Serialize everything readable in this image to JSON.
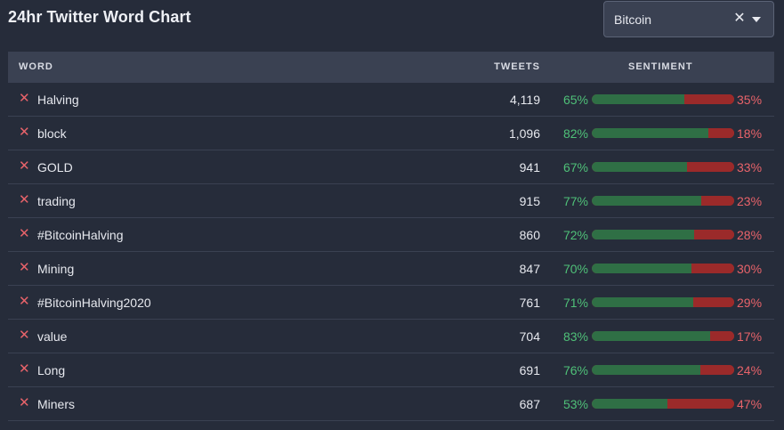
{
  "title": "24hr Twitter Word Chart",
  "select": {
    "value": "Bitcoin",
    "clear_glyph": "✕"
  },
  "table": {
    "headers": {
      "word": "WORD",
      "tweets": "TWEETS",
      "sentiment": "SENTIMENT"
    },
    "rows": [
      {
        "word": "Halving",
        "tweets": "4,119",
        "positive": "65%",
        "negative": "35%",
        "pos_value": 65
      },
      {
        "word": "block",
        "tweets": "1,096",
        "positive": "82%",
        "negative": "18%",
        "pos_value": 82
      },
      {
        "word": "GOLD",
        "tweets": "941",
        "positive": "67%",
        "negative": "33%",
        "pos_value": 67
      },
      {
        "word": "trading",
        "tweets": "915",
        "positive": "77%",
        "negative": "23%",
        "pos_value": 77
      },
      {
        "word": "#BitcoinHalving",
        "tweets": "860",
        "positive": "72%",
        "negative": "28%",
        "pos_value": 72
      },
      {
        "word": "Mining",
        "tweets": "847",
        "positive": "70%",
        "negative": "30%",
        "pos_value": 70
      },
      {
        "word": "#BitcoinHalving2020",
        "tweets": "761",
        "positive": "71%",
        "negative": "29%",
        "pos_value": 71
      },
      {
        "word": "value",
        "tweets": "704",
        "positive": "83%",
        "negative": "17%",
        "pos_value": 83
      },
      {
        "word": "Long",
        "tweets": "691",
        "positive": "76%",
        "negative": "24%",
        "pos_value": 76
      },
      {
        "word": "Miners",
        "tweets": "687",
        "positive": "53%",
        "negative": "47%",
        "pos_value": 53
      }
    ],
    "remove_glyph": "✕"
  },
  "colors": {
    "background": "#262c3a",
    "header_bg": "#3a4152",
    "positive": "#4fc078",
    "negative": "#e8636a",
    "bar_positive": "#2f6f45",
    "bar_negative": "#9b2a2a"
  },
  "icons": {
    "remove": "close-icon",
    "clear": "clear-icon",
    "dropdown": "chevron-down-icon"
  }
}
